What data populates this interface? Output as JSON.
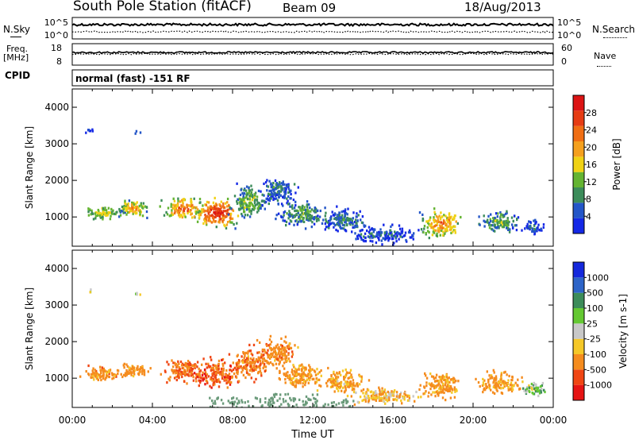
{
  "header": {
    "station": "South Pole Station (fitACF)",
    "beam": "Beam 09",
    "date": "18/Aug/2013"
  },
  "top_panels": {
    "nsky_label": "N.Sky",
    "nsearch_label": "N.Search",
    "nsky_ticks": [
      "10^5",
      "10^0"
    ],
    "nsearch_ticks": [
      "10^5",
      "10^0"
    ],
    "freq_label_1": "Freq.",
    "freq_label_2": "[MHz]",
    "freq_ticks": [
      "18",
      "8"
    ],
    "nave_label": "Nave",
    "nave_ticks": [
      "60",
      "0"
    ],
    "cpid_label": "CPID",
    "cpid_text": "normal (fast) -151 RF"
  },
  "x_axis": {
    "label": "Time UT",
    "ticks": [
      "00:00",
      "04:00",
      "08:00",
      "12:00",
      "16:00",
      "20:00",
      "00:00"
    ]
  },
  "colors": {
    "power": [
      "#1428e6",
      "#2456c8",
      "#3c8c5a",
      "#64b432",
      "#f0d214",
      "#f5a01e",
      "#f06e14",
      "#e63c14",
      "#dc1414"
    ],
    "velocity": [
      "#e61414",
      "#f04614",
      "#f58c1e",
      "#f5c828",
      "#c8c8c8",
      "#64c832",
      "#3c8c5a",
      "#2d64c8",
      "#1428dc"
    ]
  },
  "chart_data": [
    {
      "type": "heatmap",
      "panel": "power",
      "xlabel": "",
      "ylabel": "Slant Range [km]",
      "ylim": [
        200,
        4500
      ],
      "y_ticks": [
        "1000",
        "2000",
        "3000",
        "4000"
      ],
      "colorbar_label": "Power [dB]",
      "colorbar_ticks": [
        "4",
        "8",
        "12",
        "16",
        "20",
        "24",
        "28"
      ],
      "colorbar_range": [
        0,
        32
      ],
      "blobs": [
        {
          "t": 1.5,
          "r": 1150,
          "dt": 1.4,
          "dr": 250,
          "v": 14
        },
        {
          "t": 3.0,
          "r": 1250,
          "dt": 1.0,
          "dr": 300,
          "v": 18
        },
        {
          "t": 5.5,
          "r": 1250,
          "dt": 1.3,
          "dr": 420,
          "v": 22
        },
        {
          "t": 7.2,
          "r": 1150,
          "dt": 1.5,
          "dr": 500,
          "v": 27
        },
        {
          "t": 8.8,
          "r": 1450,
          "dt": 1.2,
          "dr": 550,
          "v": 12
        },
        {
          "t": 10.2,
          "r": 1750,
          "dt": 1.2,
          "dr": 500,
          "v": 7
        },
        {
          "t": 11.4,
          "r": 1100,
          "dt": 1.5,
          "dr": 450,
          "v": 10
        },
        {
          "t": 13.5,
          "r": 950,
          "dt": 1.5,
          "dr": 400,
          "v": 7
        },
        {
          "t": 15.5,
          "r": 550,
          "dt": 2.3,
          "dr": 300,
          "v": 5
        },
        {
          "t": 18.4,
          "r": 850,
          "dt": 1.3,
          "dr": 480,
          "v": 21
        },
        {
          "t": 21.3,
          "r": 900,
          "dt": 1.4,
          "dr": 380,
          "v": 11
        },
        {
          "t": 23.0,
          "r": 750,
          "dt": 0.8,
          "dr": 250,
          "v": 5
        }
      ],
      "clutter": [
        {
          "t": 0.9,
          "r": 3400,
          "dt": 0.3,
          "dr": 100,
          "v": 5
        },
        {
          "t": 3.2,
          "r": 3350,
          "dt": 0.3,
          "dr": 50,
          "v": 6
        }
      ]
    },
    {
      "type": "heatmap",
      "panel": "velocity",
      "xlabel": "",
      "ylabel": "Slant Range [km]",
      "ylim": [
        200,
        4500
      ],
      "y_ticks": [
        "1000",
        "2000",
        "3000",
        "4000"
      ],
      "colorbar_label": "Velocity [m s-1]",
      "colorbar_ticks": [
        "1000",
        "500",
        "100",
        "25",
        "-25",
        "-100",
        "-500",
        "-1000"
      ],
      "blobs": [
        {
          "t": 1.5,
          "r": 1150,
          "dt": 1.4,
          "dr": 250,
          "v": -300
        },
        {
          "t": 3.0,
          "r": 1250,
          "dt": 1.0,
          "dr": 300,
          "v": -250
        },
        {
          "t": 5.5,
          "r": 1250,
          "dt": 1.3,
          "dr": 420,
          "v": -500
        },
        {
          "t": 7.2,
          "r": 1150,
          "dt": 1.5,
          "dr": 500,
          "v": -600
        },
        {
          "t": 8.8,
          "r": 1450,
          "dt": 1.2,
          "dr": 550,
          "v": -400
        },
        {
          "t": 10.2,
          "r": 1750,
          "dt": 1.2,
          "dr": 500,
          "v": -300
        },
        {
          "t": 11.4,
          "r": 1100,
          "dt": 1.5,
          "dr": 450,
          "v": -200
        },
        {
          "t": 13.5,
          "r": 950,
          "dt": 1.5,
          "dr": 400,
          "v": -120
        },
        {
          "t": 15.5,
          "r": 550,
          "dt": 2.3,
          "dr": 300,
          "v": -80
        },
        {
          "t": 18.4,
          "r": 850,
          "dt": 1.3,
          "dr": 480,
          "v": -200
        },
        {
          "t": 21.3,
          "r": 900,
          "dt": 1.4,
          "dr": 380,
          "v": -150
        },
        {
          "t": 23.0,
          "r": 750,
          "dt": 0.8,
          "dr": 250,
          "v": 50
        }
      ],
      "clutter": [
        {
          "t": 0.9,
          "r": 3400,
          "dt": 0.3,
          "dr": 100,
          "v": 0
        },
        {
          "t": 3.2,
          "r": 3350,
          "dt": 0.3,
          "dr": 50,
          "v": 0
        }
      ],
      "ground_scatter": [
        {
          "t": 8.4,
          "r": 350,
          "dt": 1.6,
          "dr": 150
        },
        {
          "t": 11.0,
          "r": 400,
          "dt": 1.2,
          "dr": 200
        },
        {
          "t": 13.2,
          "r": 320,
          "dt": 0.8,
          "dr": 120
        }
      ]
    }
  ]
}
